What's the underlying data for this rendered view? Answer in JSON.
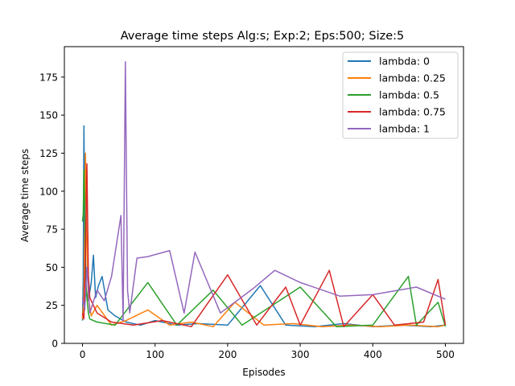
{
  "chart_data": {
    "type": "line",
    "title": "Average time steps Alg:s; Exp:2; Eps:500; Size:5",
    "xlabel": "Episodes",
    "ylabel": "Average time steps",
    "xlim": [
      -25,
      525
    ],
    "ylim": [
      0,
      195
    ],
    "xticks": [
      0,
      100,
      200,
      300,
      400,
      500
    ],
    "yticks": [
      0,
      25,
      50,
      75,
      100,
      125,
      150,
      175
    ],
    "grid": false,
    "legend_position": "top-right",
    "series": [
      {
        "name": "lambda: 0",
        "color": "#1f77b4",
        "x": [
          0,
          1,
          2,
          3,
          5,
          8,
          12,
          15,
          18,
          22,
          27,
          35,
          45,
          60,
          80,
          100,
          130,
          160,
          200,
          245,
          280,
          320,
          360,
          400,
          440,
          480,
          500
        ],
        "y": [
          15,
          40,
          143,
          80,
          35,
          28,
          40,
          58,
          30,
          38,
          44,
          22,
          18,
          14,
          12,
          15,
          12,
          13,
          12,
          38,
          12,
          11,
          13,
          11,
          12,
          11,
          12
        ]
      },
      {
        "name": "lambda: 0.25",
        "color": "#ff7f0e",
        "x": [
          0,
          2,
          4,
          6,
          8,
          12,
          20,
          40,
          60,
          90,
          120,
          150,
          180,
          210,
          250,
          290,
          330,
          370,
          410,
          450,
          490,
          500
        ],
        "y": [
          16,
          30,
          125,
          60,
          30,
          18,
          25,
          12,
          15,
          22,
          12,
          14,
          11,
          27,
          12,
          13,
          11,
          12,
          11,
          12,
          11,
          12
        ]
      },
      {
        "name": "lambda: 0.5",
        "color": "#2ca02c",
        "x": [
          0,
          1,
          2,
          3,
          4,
          6,
          8,
          10,
          20,
          45,
          90,
          130,
          180,
          220,
          300,
          350,
          400,
          449,
          460,
          490,
          500
        ],
        "y": [
          80,
          85,
          114,
          90,
          45,
          30,
          20,
          16,
          14,
          12,
          40,
          12,
          35,
          12,
          37,
          11,
          12,
          44,
          12,
          27,
          11
        ]
      },
      {
        "name": "lambda: 0.75",
        "color": "#d62728",
        "x": [
          0,
          2,
          4,
          6,
          8,
          10,
          20,
          40,
          70,
          110,
          150,
          200,
          240,
          280,
          300,
          340,
          360,
          400,
          430,
          470,
          490,
          500
        ],
        "y": [
          20,
          16,
          60,
          118,
          45,
          30,
          20,
          14,
          12,
          15,
          11,
          45,
          12,
          37,
          12,
          48,
          11,
          32,
          12,
          14,
          42,
          12
        ]
      },
      {
        "name": "lambda: 1",
        "color": "#9467bd",
        "x": [
          0,
          3,
          6,
          10,
          20,
          30,
          40,
          53,
          56,
          59,
          62,
          65,
          75,
          90,
          120,
          140,
          155,
          190,
          235,
          265,
          300,
          355,
          400,
          460,
          500
        ],
        "y": [
          30,
          22,
          50,
          20,
          35,
          28,
          44,
          84,
          15,
          185,
          35,
          20,
          56,
          57,
          61,
          20,
          60,
          20,
          36,
          48,
          40,
          31,
          32,
          37,
          29
        ]
      }
    ]
  }
}
